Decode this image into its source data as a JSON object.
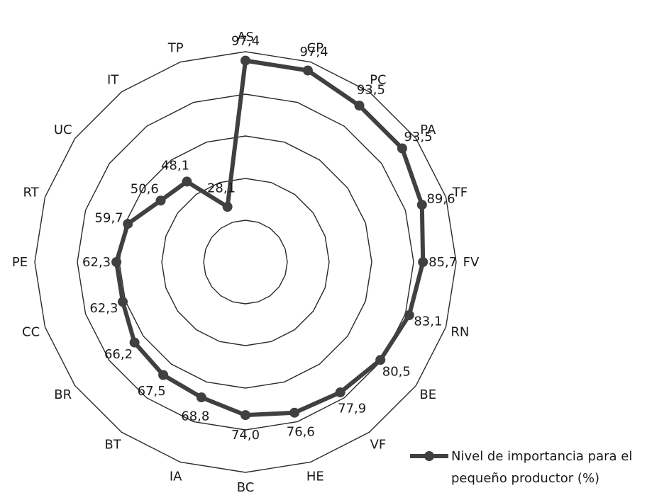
{
  "chart_data": {
    "type": "radar",
    "categories": [
      "AS",
      "CP",
      "PC",
      "PA",
      "TF",
      "FV",
      "RN",
      "BE",
      "VF",
      "HE",
      "BC",
      "IA",
      "BT",
      "BR",
      "CC",
      "PE",
      "RT",
      "UC",
      "IT",
      "TP"
    ],
    "series": [
      {
        "name": "Nivel de importancia para el pequeño productor (%)",
        "values": [
          97.4,
          97.4,
          93.5,
          93.5,
          89.6,
          85.7,
          83.1,
          80.5,
          77.9,
          76.6,
          74.0,
          68.8,
          67.5,
          66.2,
          62.3,
          62.3,
          59.7,
          50.6,
          48.1,
          28.1
        ],
        "value_labels": [
          "97,4",
          "97,4",
          "93,5",
          "93,5",
          "89,6",
          "85,7",
          "83,1",
          "80,5",
          "77,9",
          "76,6",
          "74,0",
          "68,8",
          "67,5",
          "66,2",
          "62,3",
          "62,3",
          "59,7",
          "50,6",
          "48,1",
          "28,1"
        ],
        "color": "#404040"
      }
    ],
    "rlim": [
      0,
      100
    ],
    "grid": true,
    "legend_position": "bottom-right"
  },
  "legend": {
    "line1": "Nivel de importancia para el",
    "line2": "pequeño productor (%)"
  },
  "colors": {
    "series": "#404040",
    "grid": "#2a2a2a"
  }
}
